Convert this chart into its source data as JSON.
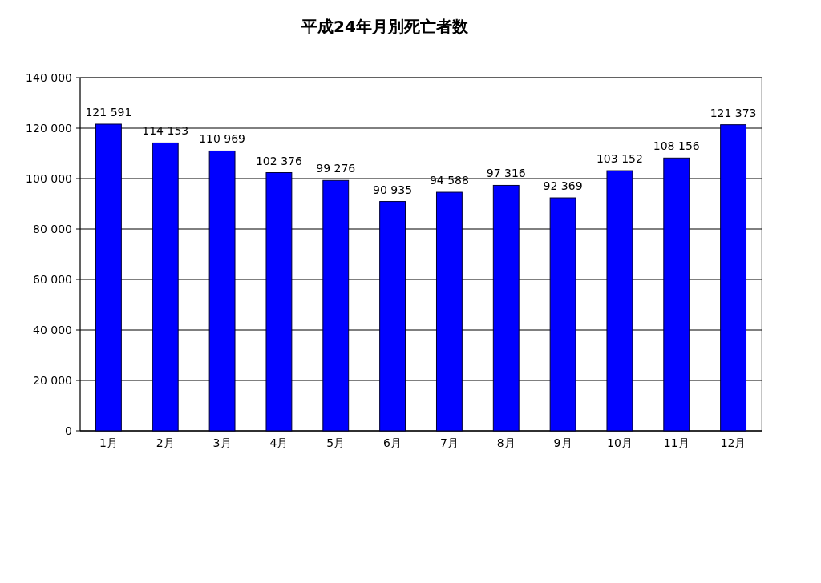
{
  "chart_data": {
    "type": "bar",
    "title": "平成24年月別死亡者数",
    "categories": [
      "1月",
      "2月",
      "3月",
      "4月",
      "5月",
      "6月",
      "7月",
      "8月",
      "9月",
      "10月",
      "11月",
      "12月"
    ],
    "values": [
      121591,
      114153,
      110969,
      102376,
      99276,
      90935,
      94588,
      97316,
      92369,
      103152,
      108156,
      121373
    ],
    "value_labels": [
      "121 591",
      "114 153",
      "110 969",
      "102 376",
      "99 276",
      "90 935",
      "94 588",
      "97 316",
      "92 369",
      "103 152",
      "108 156",
      "121 373"
    ],
    "color": "#0000ff",
    "ylim": [
      0,
      140000
    ],
    "yticks": [
      0,
      {
        "value": 20000,
        "label": "20 000"
      },
      {
        "value": 40000,
        "label": "40 000"
      },
      {
        "value": 60000,
        "label": "60 000"
      },
      {
        "value": 80000,
        "label": "80 000"
      },
      {
        "value": 100000,
        "label": "100 000"
      },
      {
        "value": 120000,
        "label": "120 000"
      },
      {
        "value": 140000,
        "label": "140 000"
      }
    ],
    "grid": "y"
  }
}
